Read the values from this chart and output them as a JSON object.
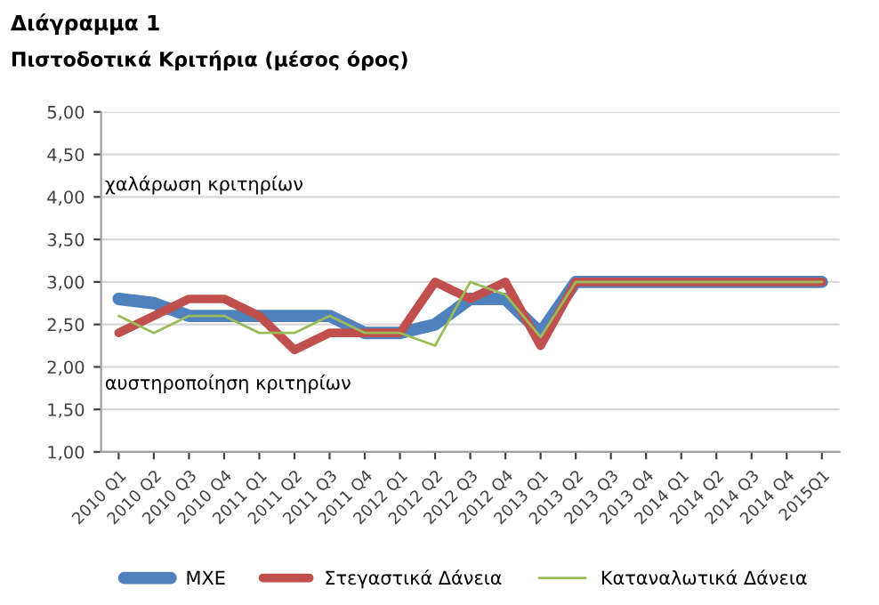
{
  "chart_data": {
    "type": "line",
    "title": "Διάγραμμα 1",
    "subtitle": "Πιστοδοτικά Κριτήρια (μέσος όρος)",
    "categories": [
      "2010 Q1",
      "2010 Q2",
      "2010 Q3",
      "2010 Q4",
      "2011 Q1",
      "2011 Q2",
      "2011 Q3",
      "2011 Q4",
      "2012 Q1",
      "2012 Q2",
      "2012 Q3",
      "2012 Q4",
      "2013 Q1",
      "2013 Q2",
      "2013 Q3",
      "2013 Q4",
      "2014 Q1",
      "2014 Q2",
      "2014 Q3",
      "2014 Q4",
      "2015Q1"
    ],
    "series": [
      {
        "name": "ΜΧΕ",
        "color": "#4f81bd",
        "values": [
          2.8,
          2.75,
          2.6,
          2.6,
          2.6,
          2.6,
          2.6,
          2.4,
          2.4,
          2.5,
          2.8,
          2.8,
          2.4,
          3,
          3,
          3,
          3,
          3,
          3,
          3,
          3
        ]
      },
      {
        "name": "Στεγαστικά Δάνεια",
        "color": "#c0504d",
        "values": [
          2.4,
          2.6,
          2.8,
          2.8,
          2.6,
          2.2,
          2.4,
          2.4,
          2.4,
          3,
          2.8,
          3,
          2.25,
          3,
          3,
          3,
          3,
          3,
          3,
          3,
          3
        ]
      },
      {
        "name": "Καταναλωτικά Δάνεια",
        "color": "#9bbb59",
        "values": [
          2.6,
          2.4,
          2.6,
          2.6,
          2.4,
          2.4,
          2.6,
          2.4,
          2.4,
          2.25,
          3,
          2.85,
          2.35,
          3,
          3,
          3,
          3,
          3,
          3,
          3,
          3
        ]
      }
    ],
    "ylim": [
      1,
      5
    ],
    "yticks": [
      {
        "value": 1,
        "label": "1,00"
      },
      {
        "value": 1.5,
        "label": "1,50"
      },
      {
        "value": 2,
        "label": "2,00"
      },
      {
        "value": 2.5,
        "label": "2,50"
      },
      {
        "value": 3,
        "label": "3,00"
      },
      {
        "value": 3.5,
        "label": "3,50"
      },
      {
        "value": 4,
        "label": "4,00"
      },
      {
        "value": 4.5,
        "label": "4,50"
      },
      {
        "value": 5,
        "label": "5,00"
      }
    ],
    "annotations": [
      "χαλάρωση κριτηρίων",
      "αυστηροποίηση κριτηρίων"
    ],
    "grid": "y",
    "legend": "bottom",
    "marker": "none",
    "line_style": "solid"
  }
}
